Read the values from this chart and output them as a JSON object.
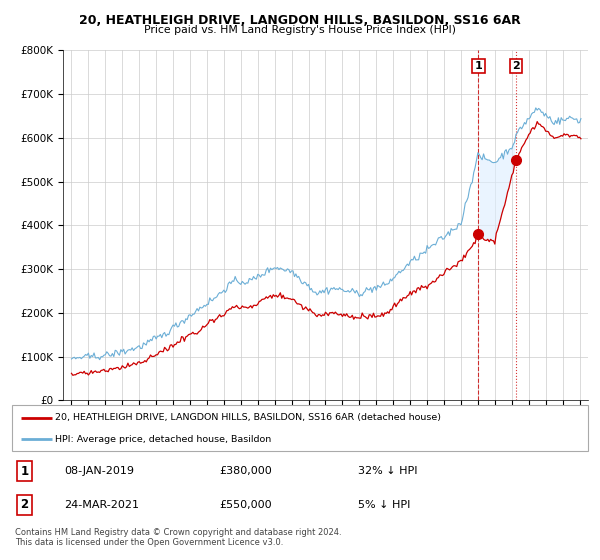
{
  "title1": "20, HEATHLEIGH DRIVE, LANGDON HILLS, BASILDON, SS16 6AR",
  "title2": "Price paid vs. HM Land Registry's House Price Index (HPI)",
  "hpi_color": "#6baed6",
  "price_color": "#cc0000",
  "shaded_color": "#ddeeff",
  "legend_label_red": "20, HEATHLEIGH DRIVE, LANGDON HILLS, BASILDON, SS16 6AR (detached house)",
  "legend_label_blue": "HPI: Average price, detached house, Basildon",
  "sale1_date": "08-JAN-2019",
  "sale1_price": "£380,000",
  "sale1_pct": "32% ↓ HPI",
  "sale2_date": "24-MAR-2021",
  "sale2_price": "£550,000",
  "sale2_pct": "5% ↓ HPI",
  "footnote": "Contains HM Land Registry data © Crown copyright and database right 2024.\nThis data is licensed under the Open Government Licence v3.0.",
  "sale1_x": 2019.03,
  "sale1_y": 380000,
  "sale2_x": 2021.23,
  "sale2_y": 550000,
  "xlim": [
    1994.5,
    2025.5
  ],
  "ylim": [
    0,
    800000
  ],
  "yticks": [
    0,
    100000,
    200000,
    300000,
    400000,
    500000,
    600000,
    700000,
    800000
  ],
  "ylabel_values": [
    "£0",
    "£100K",
    "£200K",
    "£300K",
    "£400K",
    "£500K",
    "£600K",
    "£700K",
    "£800K"
  ]
}
